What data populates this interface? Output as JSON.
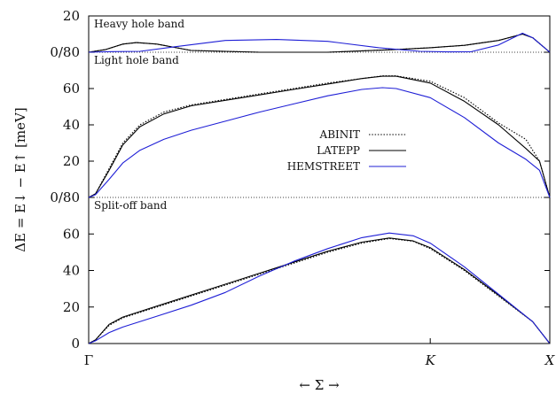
{
  "chart_data": {
    "type": "line",
    "ylabel": "ΔE = E↓ − E↑ [meV]",
    "xlabel": "← Σ →",
    "x_ticks": [
      "Γ",
      "K",
      "X"
    ],
    "x_tick_values": [
      0,
      1,
      1.35
    ],
    "xlim": [
      0,
      1.35
    ],
    "legend": {
      "placement": "center-right",
      "entries": [
        "ABINIT",
        "LATEPP",
        "HEMSTREET"
      ]
    },
    "panels": [
      {
        "label": "Heavy hole band",
        "ylim": [
          0,
          20
        ],
        "yticks": [
          0,
          20
        ],
        "ytick_labels": [
          "0/80",
          "20"
        ],
        "series": [
          {
            "name": "ABINIT",
            "color": "#000000",
            "dash": "dotted",
            "x": [
              0,
              0.05,
              0.1,
              0.14,
              0.2,
              0.3,
              0.5,
              0.7,
              0.9,
              1.0,
              1.1,
              1.2,
              1.27,
              1.3,
              1.35
            ],
            "y": [
              0,
              1.5,
              4.5,
              5.3,
              4.5,
              1,
              0,
              0,
              1.5,
              2.5,
              3.8,
              6.5,
              10,
              8,
              0
            ]
          },
          {
            "name": "LATEPP",
            "color": "#000000",
            "dash": "solid",
            "x": [
              0,
              0.05,
              0.1,
              0.14,
              0.2,
              0.3,
              0.5,
              0.7,
              0.9,
              1.0,
              1.1,
              1.2,
              1.27,
              1.3,
              1.35
            ],
            "y": [
              0,
              1.5,
              4.5,
              5.3,
              4.5,
              1,
              0,
              0,
              1.5,
              2.5,
              3.8,
              6.5,
              10,
              8,
              0
            ]
          },
          {
            "name": "HEMSTREET",
            "color": "#1f1fd6",
            "dash": "solid",
            "x": [
              0,
              0.05,
              0.15,
              0.25,
              0.4,
              0.55,
              0.7,
              0.85,
              0.97,
              1.05,
              1.12,
              1.2,
              1.27,
              1.3,
              1.35
            ],
            "y": [
              0,
              0.3,
              0.5,
              3,
              6.5,
              7,
              6,
              2.5,
              0.5,
              0.2,
              0.3,
              4,
              10.5,
              8,
              0
            ]
          }
        ]
      },
      {
        "label": "Light hole band",
        "ylim": [
          0,
          80
        ],
        "yticks": [
          0,
          20,
          40,
          60
        ],
        "ytick_labels": [
          "0/80",
          "20",
          "40",
          "60"
        ],
        "series": [
          {
            "name": "ABINIT",
            "color": "#000000",
            "dash": "dotted",
            "x": [
              0,
              0.02,
              0.06,
              0.1,
              0.15,
              0.22,
              0.3,
              0.4,
              0.5,
              0.6,
              0.7,
              0.8,
              0.86,
              0.9,
              1.0,
              1.1,
              1.2,
              1.28,
              1.32,
              1.35
            ],
            "y": [
              0,
              2,
              16,
              30,
              40,
              47,
              51,
              54,
              57,
              60,
              63,
              65.5,
              67,
              67,
              64,
              55,
              41,
              32,
              20,
              0
            ]
          },
          {
            "name": "LATEPP",
            "color": "#000000",
            "dash": "solid",
            "x": [
              0,
              0.02,
              0.06,
              0.1,
              0.15,
              0.22,
              0.3,
              0.4,
              0.5,
              0.6,
              0.7,
              0.8,
              0.86,
              0.9,
              1.0,
              1.1,
              1.2,
              1.28,
              1.32,
              1.35
            ],
            "y": [
              0,
              2,
              15,
              29,
              39,
              46,
              50.5,
              53.5,
              56.5,
              59.5,
              62.5,
              65.5,
              66.8,
              66.8,
              63,
              53,
              40,
              27,
              20,
              0
            ]
          },
          {
            "name": "HEMSTREET",
            "color": "#1f1fd6",
            "dash": "solid",
            "x": [
              0,
              0.02,
              0.06,
              0.1,
              0.15,
              0.22,
              0.3,
              0.4,
              0.5,
              0.6,
              0.7,
              0.8,
              0.86,
              0.9,
              1.0,
              1.1,
              1.2,
              1.28,
              1.32,
              1.35
            ],
            "y": [
              0,
              1.5,
              10,
              19,
              26,
              32,
              37,
              42,
              47,
              51.5,
              56,
              59.5,
              60.5,
              60,
              55,
              44,
              30,
              21,
              15,
              0
            ]
          }
        ]
      },
      {
        "label": "Split-off band",
        "ylim": [
          0,
          80
        ],
        "yticks": [
          0,
          20,
          40,
          60
        ],
        "ytick_labels": [
          "0",
          "20",
          "40",
          "60"
        ],
        "series": [
          {
            "name": "ABINIT",
            "color": "#000000",
            "dash": "dotted",
            "x": [
              0,
              0.02,
              0.06,
              0.1,
              0.2,
              0.3,
              0.4,
              0.5,
              0.6,
              0.7,
              0.8,
              0.88,
              0.95,
              1.0,
              1.1,
              1.2,
              1.3,
              1.35
            ],
            "y": [
              0,
              2,
              10,
              14,
              20,
              26,
              32,
              38,
              44,
              50,
              55,
              57.5,
              56,
              52,
              40,
              26,
              12,
              0
            ]
          },
          {
            "name": "LATEPP",
            "color": "#000000",
            "dash": "solid",
            "x": [
              0,
              0.02,
              0.06,
              0.1,
              0.2,
              0.3,
              0.4,
              0.5,
              0.6,
              0.7,
              0.8,
              0.88,
              0.95,
              1.0,
              1.1,
              1.2,
              1.3,
              1.35
            ],
            "y": [
              0,
              2,
              10.5,
              14.5,
              20.5,
              26.5,
              32.5,
              38.5,
              44.5,
              50.5,
              55.5,
              57.8,
              56.2,
              52.5,
              40.5,
              26.5,
              12,
              0
            ]
          },
          {
            "name": "HEMSTREET",
            "color": "#1f1fd6",
            "dash": "solid",
            "x": [
              0,
              0.02,
              0.06,
              0.1,
              0.2,
              0.3,
              0.4,
              0.5,
              0.6,
              0.7,
              0.8,
              0.88,
              0.95,
              1.0,
              1.1,
              1.2,
              1.3,
              1.35
            ],
            "y": [
              0,
              1.5,
              6,
              9,
              15,
              21,
              28,
              37,
              45,
              52,
              58,
              60.5,
              59,
              55,
              42,
              27,
              12,
              0
            ]
          }
        ]
      }
    ]
  }
}
